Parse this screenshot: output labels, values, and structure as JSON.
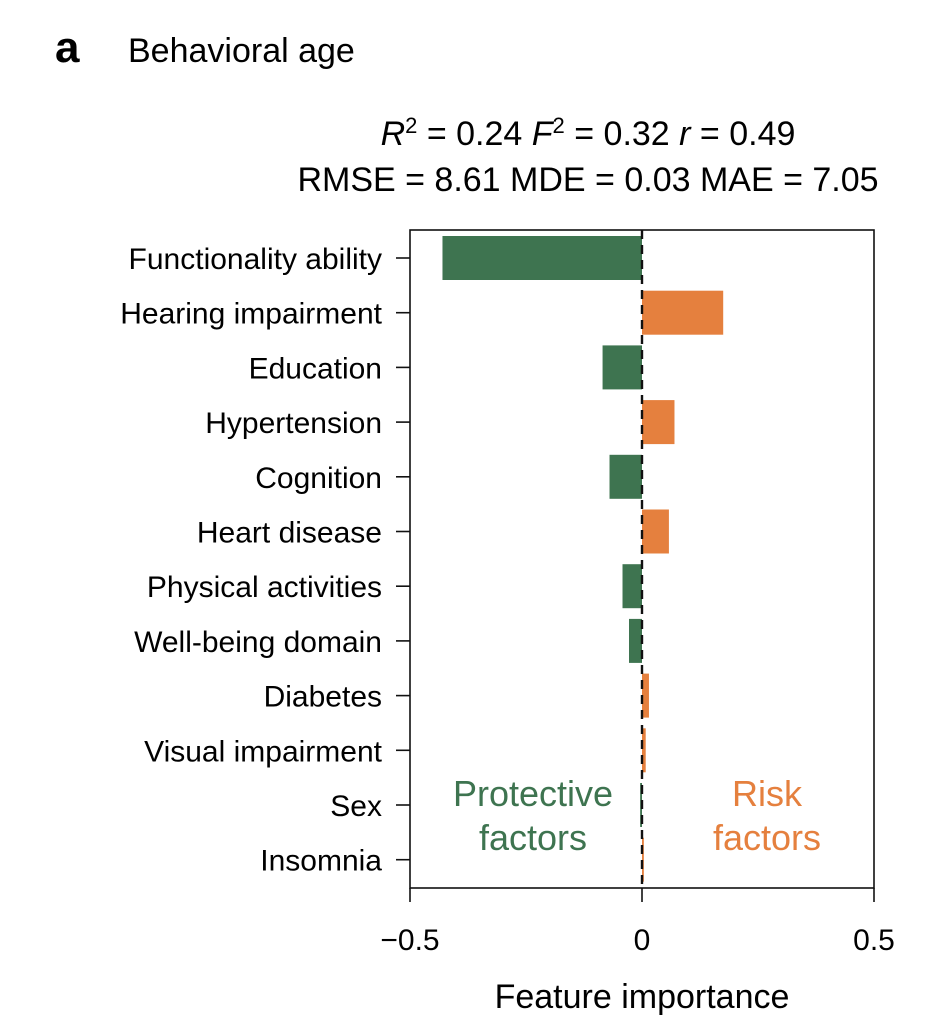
{
  "panel": {
    "letter": "a",
    "title": "Behavioral age"
  },
  "stats": {
    "line1": [
      {
        "name": "R",
        "sup": "2",
        "italic": true,
        "value": "0.24"
      },
      {
        "name": "F",
        "sup": "2",
        "italic": true,
        "value": "0.32"
      },
      {
        "name": "r",
        "sup": "",
        "italic": true,
        "value": "0.49"
      }
    ],
    "line2": "RMSE = 8.61 MDE = 0.03 MAE = 7.05"
  },
  "chart_data": {
    "type": "bar",
    "orientation": "horizontal",
    "title": "Behavioral age",
    "xlabel": "Feature importance",
    "ylabel": "",
    "xlim": [
      -0.5,
      0.5
    ],
    "xticks": [
      {
        "value": -0.5,
        "label": "−0.5"
      },
      {
        "value": 0,
        "label": "0"
      },
      {
        "value": 0.5,
        "label": "0.5"
      }
    ],
    "reference_line": {
      "x": 0,
      "style": "dashed",
      "color": "#111111"
    },
    "categories": [
      "Functionality ability",
      "Hearing impairment",
      "Education",
      "Hypertension",
      "Cognition",
      "Heart disease",
      "Physical activities",
      "Well-being domain",
      "Diabetes",
      "Visual impairment",
      "Sex",
      "Insomnia"
    ],
    "values": [
      -0.43,
      0.175,
      -0.085,
      0.07,
      -0.07,
      0.058,
      -0.042,
      -0.028,
      0.015,
      0.008,
      -0.004,
      0.004
    ],
    "colors": {
      "negative": "#3e7450",
      "positive": "#e5803e"
    },
    "annotations": [
      {
        "name": "protective",
        "lines": [
          "Protective",
          "factors"
        ],
        "color": "#3e7450"
      },
      {
        "name": "risk",
        "lines": [
          "Risk",
          "factors"
        ],
        "color": "#e5803e"
      }
    ]
  }
}
